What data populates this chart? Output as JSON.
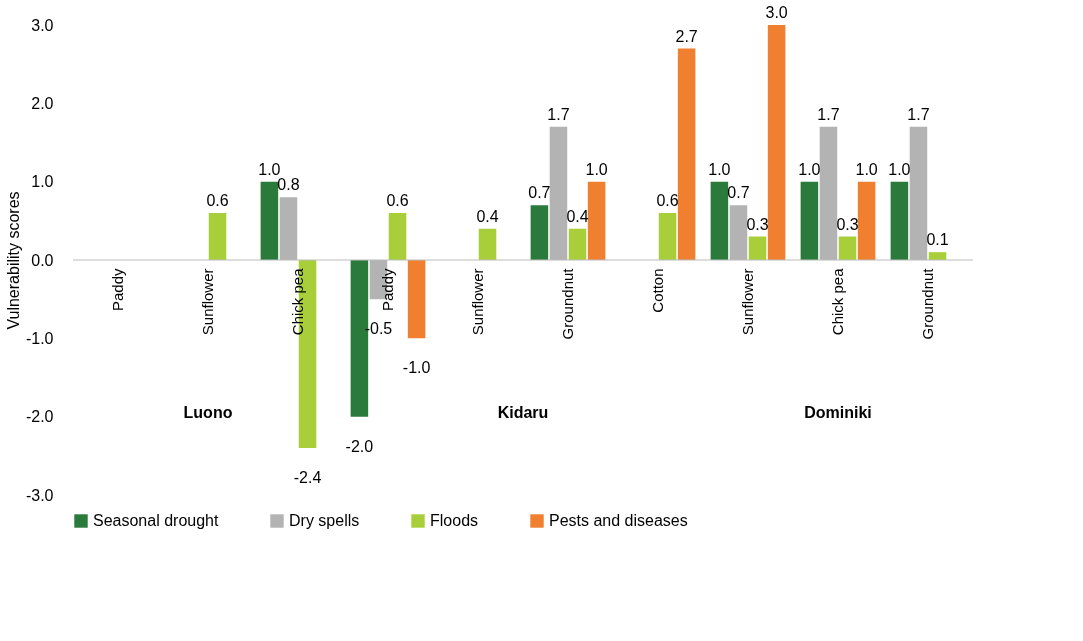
{
  "chart_data": {
    "type": "bar",
    "ylabel": "Vulnerability scores",
    "categories": [
      "Paddy",
      "Sunflower",
      "Chick pea",
      "Paddy",
      "Sunflower",
      "Groundnut",
      "Cotton",
      "Sunflower",
      "Chick pea",
      "Groundnut"
    ],
    "series": [
      {
        "name": "Seasonal drought",
        "color": "#2a7a3b",
        "values": [
          null,
          null,
          1.0,
          -2.0,
          null,
          0.7,
          null,
          1.0,
          1.0,
          1.0
        ],
        "value_labels": [
          null,
          null,
          "1.0",
          "-2.0",
          null,
          "0.7",
          null,
          "1.0",
          "1.0",
          "1.0"
        ]
      },
      {
        "name": "Dry spells",
        "color": "#b3b3b3",
        "values": [
          null,
          null,
          0.8,
          -0.5,
          null,
          1.7,
          null,
          0.7,
          1.7,
          1.7
        ],
        "value_labels": [
          null,
          null,
          "0.8",
          "-0.5",
          null,
          "1.7",
          null,
          "0.7",
          "1.7",
          "1.7"
        ]
      },
      {
        "name": "Floods",
        "color": "#a8cf3a",
        "values": [
          null,
          0.6,
          -2.4,
          0.6,
          0.4,
          0.4,
          0.6,
          0.3,
          0.3,
          0.1
        ],
        "value_labels": [
          null,
          "0.6",
          "-2.4",
          "0.6",
          "0.4",
          "0.4",
          "0.6",
          "0.3",
          "0.3",
          "0.1"
        ]
      },
      {
        "name": "Pests and diseases",
        "color": "#f08030",
        "values": [
          null,
          null,
          null,
          -1.0,
          null,
          1.0,
          2.7,
          3.0,
          1.0,
          null
        ],
        "value_labels": [
          null,
          null,
          null,
          "-1.0",
          null,
          "1.0",
          "2.7",
          "3.0",
          "1.0",
          null
        ]
      }
    ],
    "ylim": [
      -3,
      3
    ],
    "yticks": [
      {
        "value": -3,
        "label": "-3.0"
      },
      {
        "value": -2,
        "label": "-2.0"
      },
      {
        "value": -1,
        "label": "-1.0"
      },
      {
        "value": 0,
        "label": "0.0"
      },
      {
        "value": 1,
        "label": "1.0"
      },
      {
        "value": 2,
        "label": "2.0"
      },
      {
        "value": 3,
        "label": "3.0"
      }
    ],
    "annotations": [
      "Luono",
      "Kidaru",
      "Dominiki"
    ],
    "grid": false,
    "legend": "bottom"
  }
}
